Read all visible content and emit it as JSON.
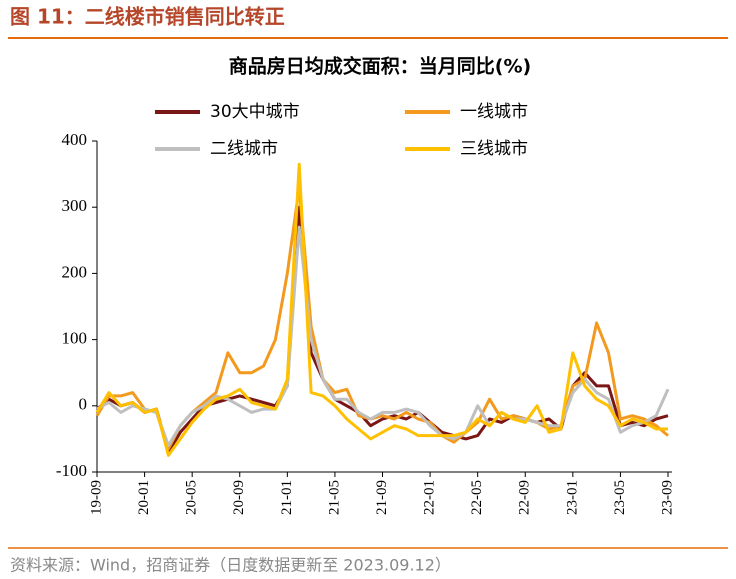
{
  "header": {
    "title": "图 11：二线楼市销售同比转正"
  },
  "footer": {
    "source": "资料来源：Wind，招商证券（日度数据更新至 2023.09.12）"
  },
  "chart_data": {
    "type": "line",
    "title": "商品房日均成交面积：当月同比(%)",
    "categories": [
      "19-09",
      null,
      null,
      null,
      "20-01",
      null,
      null,
      null,
      "20-05",
      null,
      null,
      null,
      "20-09",
      null,
      null,
      null,
      "21-01",
      null,
      null,
      null,
      "21-05",
      null,
      null,
      null,
      "21-09",
      null,
      null,
      null,
      "22-01",
      null,
      null,
      null,
      "22-05",
      null,
      null,
      null,
      "22-09",
      null,
      null,
      null,
      "23-01",
      null,
      null,
      null,
      "23-05",
      null,
      null,
      null,
      "23-09"
    ],
    "ylim": [
      -100,
      400
    ],
    "yticks": [
      -100,
      0,
      100,
      200,
      300,
      400
    ],
    "series": [
      {
        "name": "30大中城市",
        "color": "#7b1616",
        "values": [
          -5,
          10,
          0,
          5,
          -10,
          -5,
          -70,
          -40,
          -20,
          0,
          5,
          10,
          15,
          10,
          5,
          0,
          30,
          300,
          80,
          40,
          10,
          0,
          -10,
          -30,
          -20,
          -15,
          -20,
          -10,
          -25,
          -40,
          -45,
          -50,
          -45,
          -20,
          -25,
          -15,
          -20,
          -25,
          -20,
          -35,
          30,
          50,
          30,
          30,
          -30,
          -25,
          -30,
          -20,
          -15
        ]
      },
      {
        "name": "一线城市",
        "color": "#f39a1e",
        "values": [
          -15,
          15,
          15,
          20,
          -5,
          -10,
          -65,
          -30,
          -10,
          5,
          20,
          80,
          50,
          50,
          60,
          100,
          200,
          330,
          120,
          40,
          20,
          25,
          -15,
          -20,
          -15,
          -20,
          -10,
          -20,
          -25,
          -45,
          -55,
          -40,
          -25,
          10,
          -20,
          -15,
          -20,
          -25,
          -35,
          -30,
          30,
          40,
          125,
          80,
          -20,
          -15,
          -20,
          -30,
          -45
        ]
      },
      {
        "name": "二线城市",
        "color": "#bfbfbf",
        "values": [
          -5,
          5,
          -10,
          0,
          -5,
          -10,
          -60,
          -30,
          -10,
          0,
          15,
          10,
          0,
          -10,
          -5,
          -5,
          30,
          270,
          100,
          40,
          10,
          10,
          -10,
          -20,
          -10,
          -10,
          -5,
          -10,
          -30,
          -45,
          -50,
          -40,
          0,
          -30,
          -10,
          -20,
          -20,
          -25,
          -30,
          -30,
          20,
          40,
          20,
          10,
          -40,
          -30,
          -25,
          -15,
          25
        ]
      },
      {
        "name": "三线城市",
        "color": "#ffc000",
        "values": [
          -10,
          20,
          0,
          5,
          -10,
          -5,
          -75,
          -50,
          -25,
          -5,
          10,
          15,
          25,
          5,
          0,
          -5,
          40,
          365,
          20,
          15,
          0,
          -20,
          -35,
          -50,
          -40,
          -30,
          -35,
          -45,
          -45,
          -45,
          -45,
          -40,
          -20,
          -30,
          -10,
          -20,
          -25,
          0,
          -40,
          -35,
          80,
          30,
          10,
          0,
          -30,
          -20,
          -25,
          -35,
          -35
        ]
      }
    ]
  }
}
